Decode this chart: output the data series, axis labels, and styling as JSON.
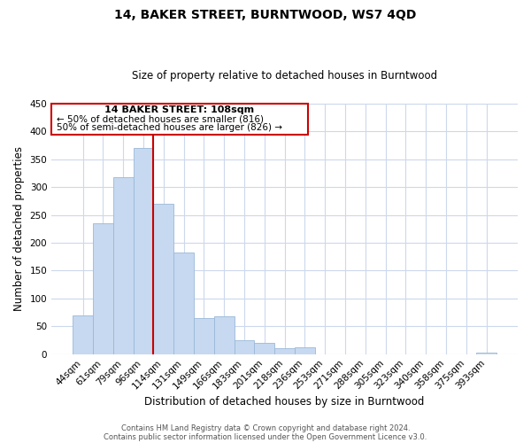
{
  "title": "14, BAKER STREET, BURNTWOOD, WS7 4QD",
  "subtitle": "Size of property relative to detached houses in Burntwood",
  "xlabel": "Distribution of detached houses by size in Burntwood",
  "ylabel": "Number of detached properties",
  "categories": [
    "44sqm",
    "61sqm",
    "79sqm",
    "96sqm",
    "114sqm",
    "131sqm",
    "149sqm",
    "166sqm",
    "183sqm",
    "201sqm",
    "218sqm",
    "236sqm",
    "253sqm",
    "271sqm",
    "288sqm",
    "305sqm",
    "323sqm",
    "340sqm",
    "358sqm",
    "375sqm",
    "393sqm"
  ],
  "values": [
    70,
    235,
    318,
    370,
    270,
    182,
    65,
    68,
    25,
    20,
    11,
    12,
    0,
    0,
    0,
    0,
    0,
    0,
    0,
    0,
    2
  ],
  "bar_color": "#c6d9f0",
  "bar_edge_color": "#9ab8d8",
  "highlight_line_color": "#cc0000",
  "highlight_line_index": 4,
  "annotation_text_line1": "14 BAKER STREET: 108sqm",
  "annotation_text_line2": "← 50% of detached houses are smaller (816)",
  "annotation_text_line3": "50% of semi-detached houses are larger (826) →",
  "ylim": [
    0,
    450
  ],
  "yticks": [
    0,
    50,
    100,
    150,
    200,
    250,
    300,
    350,
    400,
    450
  ],
  "footer_line1": "Contains HM Land Registry data © Crown copyright and database right 2024.",
  "footer_line2": "Contains public sector information licensed under the Open Government Licence v3.0.",
  "background_color": "#ffffff",
  "grid_color": "#ccd8ec",
  "title_fontsize": 10,
  "subtitle_fontsize": 8.5,
  "xlabel_fontsize": 8.5,
  "ylabel_fontsize": 8.5,
  "tick_fontsize": 7.5,
  "footer_fontsize": 6.0
}
